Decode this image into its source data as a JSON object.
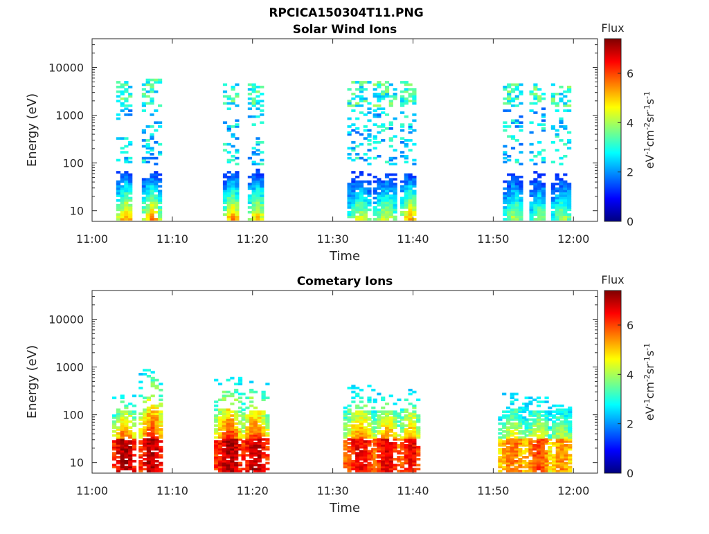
{
  "figure": {
    "title": "RPCICA150304T11.PNG",
    "colormap": [
      "#00007f",
      "#0000ff",
      "#007fff",
      "#00ffff",
      "#7fff7f",
      "#ffff00",
      "#ff7f00",
      "#ff0000",
      "#7f0000"
    ]
  },
  "chart_data": [
    {
      "type": "heatmap",
      "title": "Solar Wind Ions",
      "xlabel": "Time",
      "ylabel": "Energy (eV)",
      "x_ticks": [
        "11:00",
        "11:10",
        "11:20",
        "11:30",
        "11:40",
        "11:50",
        "12:00"
      ],
      "x_tick_minutes": [
        0,
        10,
        20,
        30,
        40,
        50,
        60
      ],
      "xlim_minutes": [
        0,
        63
      ],
      "y_scale": "log",
      "y_ticks": [
        "10",
        "100",
        "1000",
        "10000"
      ],
      "y_tick_values": [
        10,
        100,
        1000,
        10000
      ],
      "ylim": [
        6,
        40000
      ],
      "colorbar": {
        "title": "Flux",
        "label": "eV-1cm-2sr-1s-1",
        "ticks": [
          "0",
          "2",
          "4",
          "6"
        ],
        "range": [
          0,
          7.4
        ]
      },
      "grid": false,
      "bursts": [
        {
          "start_min": 3.0,
          "end_min": 5.0,
          "low_flux": 4.5,
          "high_flux_emin": 1500,
          "high_flux_emax": 5500
        },
        {
          "start_min": 6.2,
          "end_min": 8.3,
          "low_flux": 4.5,
          "high_flux_emin": 1500,
          "high_flux_emax": 5500
        },
        {
          "start_min": 16.3,
          "end_min": 18.3,
          "low_flux": 4.5,
          "high_flux_emin": 1500,
          "high_flux_emax": 5000
        },
        {
          "start_min": 19.4,
          "end_min": 21.3,
          "low_flux": 4.3,
          "high_flux_emin": 1500,
          "high_flux_emax": 5000
        },
        {
          "start_min": 31.8,
          "end_min": 34.5,
          "low_flux": 3.6,
          "high_flux_emin": 1500,
          "high_flux_emax": 5000
        },
        {
          "start_min": 35.0,
          "end_min": 37.8,
          "low_flux": 3.6,
          "high_flux_emin": 1500,
          "high_flux_emax": 5000
        },
        {
          "start_min": 38.4,
          "end_min": 40.4,
          "low_flux": 4.4,
          "high_flux_emin": 1500,
          "high_flux_emax": 5000
        },
        {
          "start_min": 51.2,
          "end_min": 53.6,
          "low_flux": 3.4,
          "high_flux_emin": 1500,
          "high_flux_emax": 4500
        },
        {
          "start_min": 54.5,
          "end_min": 56.5,
          "low_flux": 3.3,
          "high_flux_emin": 1500,
          "high_flux_emax": 4500
        },
        {
          "start_min": 57.2,
          "end_min": 59.7,
          "low_flux": 3.3,
          "high_flux_emin": 1500,
          "high_flux_emax": 4500
        }
      ]
    },
    {
      "type": "heatmap",
      "title": "Cometary Ions",
      "xlabel": "Time",
      "ylabel": "Energy (eV)",
      "x_ticks": [
        "11:00",
        "11:10",
        "11:20",
        "11:30",
        "11:40",
        "11:50",
        "12:00"
      ],
      "x_tick_minutes": [
        0,
        10,
        20,
        30,
        40,
        50,
        60
      ],
      "xlim_minutes": [
        0,
        63
      ],
      "y_scale": "log",
      "y_ticks": [
        "10",
        "100",
        "1000",
        "10000"
      ],
      "y_tick_values": [
        10,
        100,
        1000,
        10000
      ],
      "ylim": [
        6,
        40000
      ],
      "colorbar": {
        "title": "Flux",
        "label": "eV-1cm-2sr-1s-1",
        "ticks": [
          "0",
          "2",
          "4",
          "6"
        ],
        "range": [
          0,
          7.4
        ]
      },
      "grid": false,
      "bursts": [
        {
          "start_min": 2.5,
          "end_min": 5.3,
          "peak_flux": 7.1,
          "top_energy": 250
        },
        {
          "start_min": 5.8,
          "end_min": 8.7,
          "peak_flux": 7.0,
          "top_energy": 900
        },
        {
          "start_min": 15.2,
          "end_min": 18.6,
          "peak_flux": 7.0,
          "top_energy": 600
        },
        {
          "start_min": 18.6,
          "end_min": 21.7,
          "peak_flux": 6.9,
          "top_energy": 550
        },
        {
          "start_min": 31.3,
          "end_min": 35.0,
          "peak_flux": 6.6,
          "top_energy": 380
        },
        {
          "start_min": 35.0,
          "end_min": 38.1,
          "peak_flux": 6.6,
          "top_energy": 300
        },
        {
          "start_min": 38.4,
          "end_min": 40.7,
          "peak_flux": 6.6,
          "top_energy": 320
        },
        {
          "start_min": 50.6,
          "end_min": 53.9,
          "peak_flux": 5.6,
          "top_energy": 260
        },
        {
          "start_min": 53.9,
          "end_min": 56.9,
          "peak_flux": 5.9,
          "top_energy": 220
        },
        {
          "start_min": 56.8,
          "end_min": 59.8,
          "peak_flux": 5.4,
          "top_energy": 200
        }
      ]
    }
  ]
}
